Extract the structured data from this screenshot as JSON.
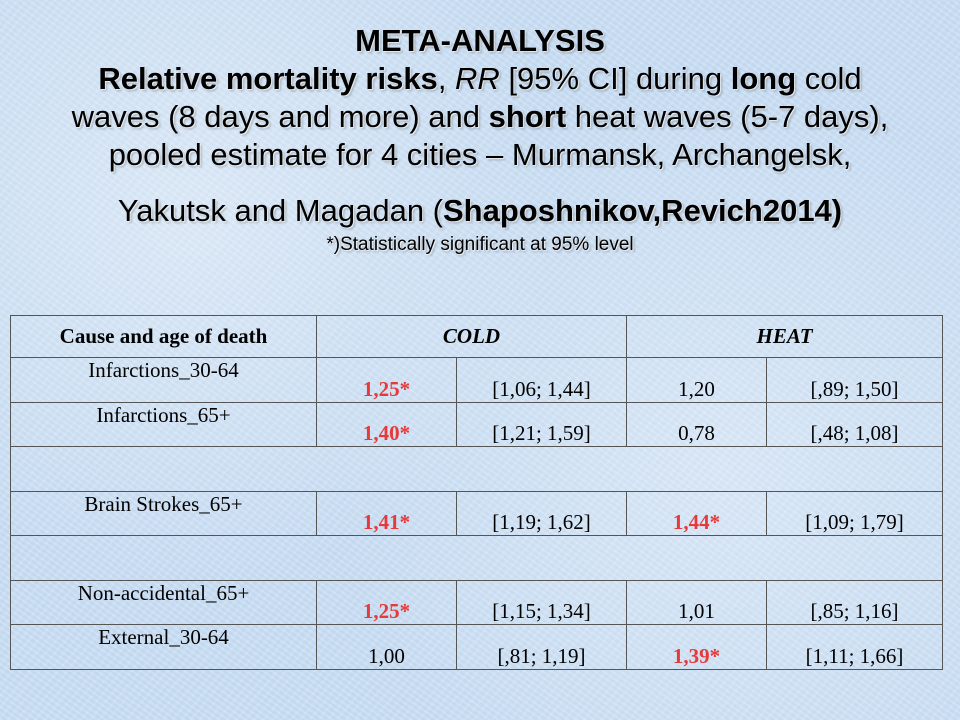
{
  "title": {
    "line1": "META-ANALYSIS",
    "line2": {
      "p1": "Relative mortality risks",
      "p2": ", ",
      "p3": "RR",
      "p4": " [95% CI] during ",
      "p5": "long",
      "p6": " cold"
    },
    "line3": {
      "p1": "waves (8 days and more) and ",
      "p2": "short",
      "p3": " heat waves (5-7 days),"
    },
    "line4": "pooled estimate for 4 cities – Murmansk, Archangelsk,",
    "line5": {
      "p1": "Yakutsk and Magadan (",
      "p2": "Shaposhnikov,Revich2014)"
    },
    "footnote": "*)Statistically significant at 95% level"
  },
  "colors": {
    "significant": "#e63a3a",
    "background": "#c9ddf2"
  },
  "table": {
    "headers": {
      "cause": "Cause and age of death",
      "cold": "COLD",
      "heat": "HEAT"
    },
    "rows": [
      {
        "cause": "Infarctions_30-64",
        "cold_rr": "1,25*",
        "cold_ci": "[1,06; 1,44]",
        "heat_rr": "1,20",
        "heat_ci": "[,89; 1,50]"
      },
      {
        "cause": "Infarctions_65+",
        "cold_rr": "1,40*",
        "cold_ci": "[1,21; 1,59]",
        "heat_rr": "0,78",
        "heat_ci": "[,48; 1,08]"
      },
      {
        "cause": "Brain Strokes_65+",
        "cold_rr": "1,41*",
        "cold_ci": "[1,19; 1,62]",
        "heat_rr": "1,44*",
        "heat_ci": "[1,09; 1,79]"
      },
      {
        "cause": "Non-accidental_65+",
        "cold_rr": "1,25*",
        "cold_ci": "[1,15; 1,34]",
        "heat_rr": "1,01",
        "heat_ci": "[,85; 1,16]"
      },
      {
        "cause": "External_30-64",
        "cold_rr": "1,00",
        "cold_ci": "[,81; 1,19]",
        "heat_rr": "1,39*",
        "heat_ci": "[1,11; 1,66]"
      }
    ]
  }
}
